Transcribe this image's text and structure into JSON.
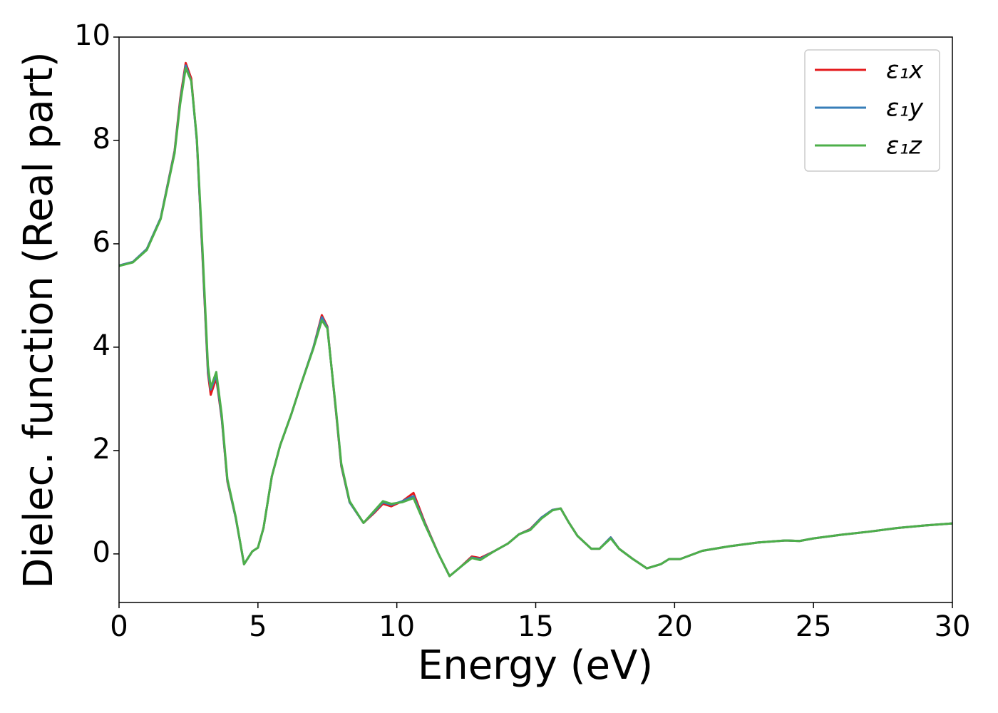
{
  "chart_data": {
    "type": "line",
    "xlabel": "Energy (eV)",
    "ylabel": "Dielec. function (Real part)",
    "x": [
      0,
      0.5,
      1.0,
      1.5,
      2.0,
      2.2,
      2.4,
      2.6,
      2.8,
      3.0,
      3.2,
      3.3,
      3.5,
      3.7,
      3.9,
      4.2,
      4.5,
      4.8,
      5.0,
      5.2,
      5.5,
      5.8,
      6.2,
      6.5,
      7.0,
      7.3,
      7.5,
      7.8,
      8.0,
      8.3,
      8.8,
      9.2,
      9.5,
      9.8,
      10.2,
      10.6,
      11.0,
      11.5,
      11.9,
      12.3,
      12.7,
      13.0,
      13.5,
      14.0,
      14.4,
      14.8,
      15.2,
      15.6,
      15.9,
      16.2,
      16.5,
      17.0,
      17.3,
      17.7,
      18.0,
      18.5,
      19.0,
      19.5,
      19.8,
      20.2,
      21.0,
      22,
      23,
      24,
      24.5,
      25,
      26,
      27,
      28,
      29,
      30
    ],
    "series": [
      {
        "name": "ε₁x",
        "color": "#e41a1c",
        "values": [
          5.58,
          5.65,
          5.9,
          6.5,
          7.8,
          8.8,
          9.5,
          9.2,
          8.0,
          5.8,
          3.5,
          3.08,
          3.4,
          2.6,
          1.4,
          0.7,
          -0.2,
          0.05,
          0.12,
          0.5,
          1.5,
          2.1,
          2.7,
          3.2,
          4.0,
          4.62,
          4.4,
          2.8,
          1.7,
          1.0,
          0.6,
          0.8,
          0.97,
          0.92,
          1.02,
          1.18,
          0.62,
          0.0,
          -0.43,
          -0.25,
          -0.05,
          -0.08,
          0.05,
          0.2,
          0.38,
          0.48,
          0.7,
          0.85,
          0.88,
          0.6,
          0.35,
          0.1,
          0.1,
          0.32,
          0.1,
          -0.1,
          -0.28,
          -0.2,
          -0.1,
          -0.1,
          0.06,
          0.15,
          0.22,
          0.26,
          0.25,
          0.3,
          0.37,
          0.43,
          0.5,
          0.55,
          0.59
        ]
      },
      {
        "name": "ε₁y",
        "color": "#377eb8",
        "values": [
          5.58,
          5.65,
          5.9,
          6.5,
          7.78,
          8.75,
          9.45,
          9.15,
          8.0,
          5.85,
          3.55,
          3.18,
          3.46,
          2.62,
          1.42,
          0.7,
          -0.2,
          0.05,
          0.12,
          0.5,
          1.5,
          2.1,
          2.7,
          3.2,
          4.0,
          4.58,
          4.38,
          2.82,
          1.72,
          1.0,
          0.6,
          0.82,
          1.0,
          0.95,
          1.02,
          1.12,
          0.6,
          0.0,
          -0.43,
          -0.25,
          -0.07,
          -0.1,
          0.05,
          0.2,
          0.38,
          0.47,
          0.7,
          0.85,
          0.88,
          0.6,
          0.35,
          0.1,
          0.1,
          0.32,
          0.1,
          -0.1,
          -0.28,
          -0.2,
          -0.1,
          -0.1,
          0.06,
          0.15,
          0.22,
          0.26,
          0.25,
          0.3,
          0.37,
          0.43,
          0.5,
          0.55,
          0.59
        ]
      },
      {
        "name": "ε₁z",
        "color": "#4daf4a",
        "values": [
          5.57,
          5.64,
          5.88,
          6.48,
          7.75,
          8.7,
          9.4,
          9.15,
          8.05,
          5.95,
          3.65,
          3.22,
          3.52,
          2.68,
          1.45,
          0.72,
          -0.2,
          0.05,
          0.12,
          0.5,
          1.5,
          2.1,
          2.7,
          3.2,
          3.98,
          4.52,
          4.36,
          2.85,
          1.75,
          1.02,
          0.6,
          0.84,
          1.02,
          0.97,
          1.0,
          1.08,
          0.58,
          0.0,
          -0.43,
          -0.25,
          -0.08,
          -0.12,
          0.05,
          0.2,
          0.38,
          0.46,
          0.68,
          0.84,
          0.88,
          0.6,
          0.35,
          0.1,
          0.1,
          0.3,
          0.1,
          -0.1,
          -0.28,
          -0.2,
          -0.1,
          -0.1,
          0.06,
          0.15,
          0.22,
          0.26,
          0.25,
          0.3,
          0.37,
          0.43,
          0.5,
          0.55,
          0.59
        ]
      }
    ],
    "xlim": [
      0,
      30
    ],
    "xticks": [
      0,
      5,
      10,
      15,
      20,
      25,
      30
    ],
    "ylim": [
      -0.94,
      10
    ],
    "yticks": [
      0,
      2,
      4,
      6,
      8,
      10
    ],
    "grid": false,
    "legend": "upper right"
  }
}
